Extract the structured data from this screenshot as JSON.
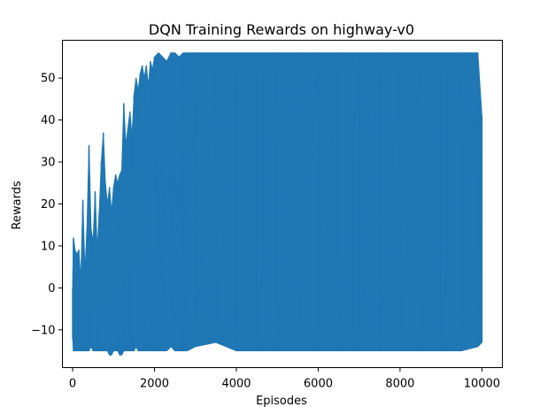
{
  "chart_data": {
    "type": "line",
    "title": "DQN Training Rewards on highway-v0",
    "xlabel": "Episodes",
    "ylabel": "Rewards",
    "xlim": [
      -250,
      10500
    ],
    "ylim": [
      -19,
      59
    ],
    "grid": false,
    "legend": "none",
    "series_color": "#1f77b4",
    "x_ticks": [
      {
        "value": 0,
        "label": "0"
      },
      {
        "value": 2000,
        "label": "2000"
      },
      {
        "value": 4000,
        "label": "4000"
      },
      {
        "value": 6000,
        "label": "6000"
      },
      {
        "value": 8000,
        "label": "8000"
      },
      {
        "value": 10000,
        "label": "10000"
      }
    ],
    "y_ticks": [
      {
        "value": -10,
        "label": "−10"
      },
      {
        "value": 0,
        "label": "0"
      },
      {
        "value": 10,
        "label": "10"
      },
      {
        "value": 20,
        "label": "20"
      },
      {
        "value": 30,
        "label": "30"
      },
      {
        "value": 40,
        "label": "40"
      },
      {
        "value": 50,
        "label": "50"
      }
    ],
    "series": [
      {
        "x": [
          0,
          20,
          60,
          100,
          150,
          200,
          250,
          300,
          350,
          400,
          450,
          500,
          550,
          600,
          650,
          700,
          750,
          800,
          850,
          900,
          950,
          1000,
          1050,
          1100,
          1150,
          1200,
          1250,
          1300,
          1350,
          1400,
          1450,
          1500,
          1550,
          1600,
          1650,
          1700,
          1750,
          1800,
          1850,
          1900,
          1950,
          2000,
          2100,
          2200,
          2300,
          2400,
          2500,
          2600,
          2700,
          2800,
          3000,
          3500,
          4000,
          4500,
          5000,
          5500,
          6000,
          6500,
          7000,
          7500,
          8000,
          8500,
          9000,
          9500,
          9900,
          10000
        ],
        "max": [
          0,
          12,
          9,
          8,
          9,
          2,
          21,
          4,
          14,
          34,
          14,
          11,
          23,
          9,
          18,
          30,
          37,
          25,
          20,
          24,
          18,
          24,
          27,
          25,
          27,
          28,
          44,
          34,
          38,
          42,
          36,
          46,
          50,
          47,
          51,
          53,
          50,
          53,
          48,
          54,
          52,
          55,
          56,
          55,
          54,
          56,
          56,
          55,
          56,
          56,
          56,
          56,
          56,
          56,
          56,
          56,
          56,
          56,
          56,
          56,
          56,
          56,
          56,
          56,
          56,
          41
        ],
        "min": [
          -12,
          -15,
          -15,
          -15,
          -15,
          -15,
          -15,
          -15,
          -15,
          -15,
          -14,
          -15,
          -15,
          -15,
          -15,
          -15,
          -15,
          -15,
          -15,
          -16,
          -16,
          -15,
          -15,
          -15,
          -16,
          -16,
          -15,
          -15,
          -15,
          -15,
          -15,
          -15,
          -14,
          -15,
          -15,
          -15,
          -15,
          -15,
          -15,
          -15,
          -15,
          -15,
          -15,
          -15,
          -15,
          -14,
          -15,
          -15,
          -15,
          -15,
          -14,
          -13,
          -15,
          -15,
          -15,
          -15,
          -15,
          -15,
          -15,
          -15,
          -15,
          -15,
          -15,
          -15,
          -14,
          -13
        ]
      }
    ]
  }
}
